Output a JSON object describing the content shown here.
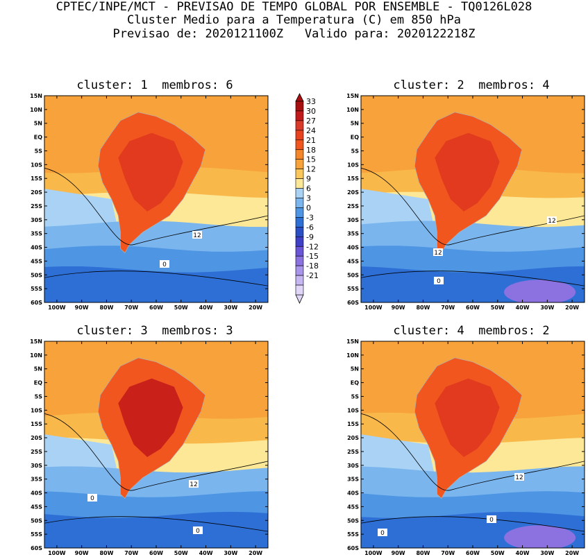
{
  "header": {
    "line1": "CPTEC/INPE/MCT - PREVISAO DE TEMPO GLOBAL POR ENSEMBLE - TQ0126L028",
    "line2": "Cluster Medio para a Temperatura (C) em 850 hPa",
    "line3": "Previsao de: 2020121100Z   Valido para: 2020122218Z"
  },
  "map_axes": {
    "lat_labels": [
      "15N",
      "10N",
      "5N",
      "EQ",
      "5S",
      "10S",
      "15S",
      "20S",
      "25S",
      "30S",
      "35S",
      "40S",
      "45S",
      "50S",
      "55S",
      "60S"
    ],
    "lon_labels": [
      "100W",
      "90W",
      "80W",
      "70W",
      "60W",
      "50W",
      "40W",
      "30W",
      "20W"
    ]
  },
  "colorbar": {
    "levels": [
      "33",
      "30",
      "27",
      "24",
      "21",
      "18",
      "15",
      "12",
      "9",
      "6",
      "3",
      "0",
      "-3",
      "-6",
      "-9",
      "-12",
      "-15",
      "-18",
      "-21"
    ],
    "colors": [
      "#a80f0f",
      "#c21a1a",
      "#d93a2a",
      "#e8421f",
      "#f0561e",
      "#f5872a",
      "#f7a23a",
      "#fbc75a",
      "#fde898",
      "#a9d2f5",
      "#7ab5ee",
      "#4e95e3",
      "#2e6fd6",
      "#2a4fc4",
      "#3f3fc8",
      "#6a55d6",
      "#8b72e0",
      "#a995ea",
      "#c6b6f2",
      "#dfd6f8"
    ]
  },
  "panels": [
    {
      "title": "cluster: 1  membros: 6",
      "labels": [
        {
          "text": "12"
        },
        {
          "text": "0"
        }
      ]
    },
    {
      "title": "cluster: 2  membros: 4",
      "labels": [
        {
          "text": "12"
        },
        {
          "text": "12"
        },
        {
          "text": "0"
        }
      ]
    },
    {
      "title": "cluster: 3  membros: 3",
      "labels": [
        {
          "text": "12"
        },
        {
          "text": "0"
        },
        {
          "text": "0"
        }
      ]
    },
    {
      "title": "cluster: 4  membros: 2",
      "labels": [
        {
          "text": "12"
        },
        {
          "text": "0"
        },
        {
          "text": "0"
        }
      ]
    }
  ]
}
